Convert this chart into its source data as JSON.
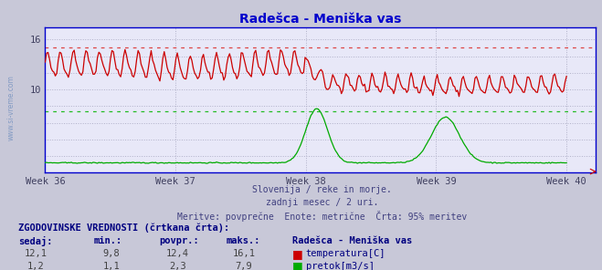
{
  "title": "Radešca - Meniška vas",
  "bg_color": "#c8c8d8",
  "plot_bg_color": "#e8e8f8",
  "title_color": "#0000cc",
  "grid_color": "#b0b0c8",
  "axis_color": "#0000cc",
  "tick_color": "#404060",
  "x_tick_labels": [
    "Week 36",
    "Week 37",
    "Week 38",
    "Week 39",
    "Week 40"
  ],
  "x_tick_positions": [
    0,
    84,
    168,
    252,
    336
  ],
  "y_ticks": [
    10,
    16
  ],
  "ylim": [
    0,
    17.5
  ],
  "xlim": [
    0,
    355
  ],
  "temp_color": "#cc0000",
  "flow_color": "#00aa00",
  "temp_dash_color": "#dd4444",
  "flow_dash_color": "#22bb22",
  "temp_hline": 15.0,
  "flow_hline_display": 7.4,
  "flow_scale": 17.0,
  "footer_lines": [
    "Slovenija / reke in morje.",
    "zadnji mesec / 2 uri.",
    "Meritve: povprečne  Enote: metrične  Črta: 95% meritev"
  ],
  "table_header": "ZGODOVINSKE VREDNOSTI (črtkana črta):",
  "col_headers": [
    "sedaj:",
    "min.:",
    "povpr.:",
    "maks.:",
    "Radešca - Meniška vas"
  ],
  "row1": [
    "12,1",
    "9,8",
    "12,4",
    "16,1",
    "temperatura[C]"
  ],
  "row2": [
    "1,2",
    "1,1",
    "2,3",
    "7,9",
    "pretok[m3/s]"
  ],
  "footer_color": "#404080",
  "table_header_color": "#000080",
  "col_header_color": "#000080",
  "value_color": "#404040",
  "legend_name_color": "#000080"
}
